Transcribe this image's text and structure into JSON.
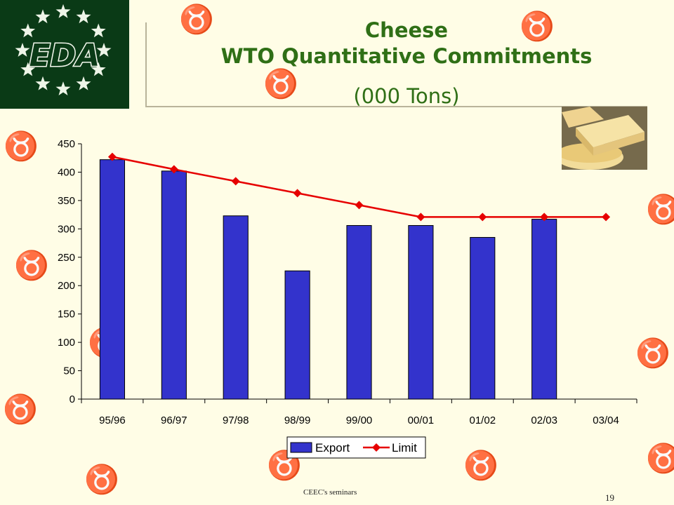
{
  "logo": {
    "text": "EDA"
  },
  "title": {
    "line1": "Cheese",
    "line2": "WTO Quantitative Commitments",
    "subtitle": "(000 Tons)"
  },
  "footer": {
    "text": "CEEC's seminars",
    "page_number": "19"
  },
  "colors": {
    "title": "#2f6f16",
    "export_bar": "#3333cc",
    "limit_line": "#e60000",
    "background": "#fffde6",
    "logo_bg": "#0a3a16"
  },
  "chart_data": {
    "type": "bar",
    "categories": [
      "95/96",
      "96/97",
      "97/98",
      "98/99",
      "99/00",
      "00/01",
      "01/02",
      "02/03",
      "03/04"
    ],
    "ylim": [
      0,
      450
    ],
    "yticks": [
      "0",
      "50",
      "100",
      "150",
      "200",
      "250",
      "300",
      "350",
      "400",
      "450"
    ],
    "grid": false,
    "legend_position": "bottom",
    "series": [
      {
        "name": "Export",
        "type": "bar",
        "color": "#3333cc",
        "values": [
          422,
          402,
          323,
          226,
          306,
          306,
          285,
          317,
          null
        ]
      },
      {
        "name": "Limit",
        "type": "line",
        "color": "#e60000",
        "marker": "diamond",
        "values": [
          427,
          405,
          384,
          363,
          342,
          321,
          321,
          321,
          321
        ]
      }
    ]
  }
}
